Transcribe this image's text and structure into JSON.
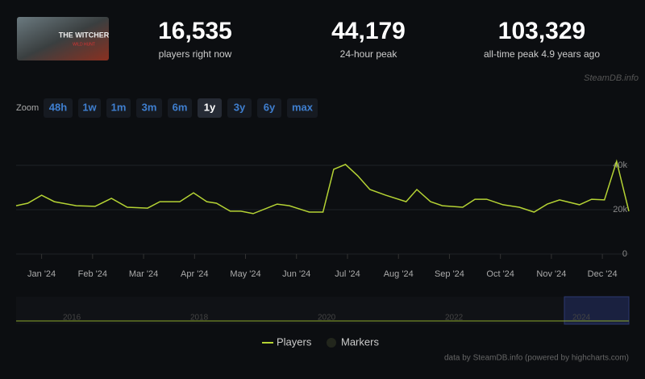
{
  "header": {
    "thumbnail_title": "THE WITCHER",
    "thumbnail_subtitle": "WILD HUNT",
    "stats": [
      {
        "value": "16,535",
        "label": "players right now"
      },
      {
        "value": "44,179",
        "label": "24-hour peak"
      },
      {
        "value": "103,329",
        "label": "all-time peak 4.9 years ago"
      }
    ],
    "watermark": "SteamDB.info"
  },
  "zoom": {
    "label": "Zoom",
    "buttons": [
      "48h",
      "1w",
      "1m",
      "3m",
      "6m",
      "1y",
      "3y",
      "6y",
      "max"
    ],
    "active": 5
  },
  "chart_data": {
    "type": "line",
    "x": [
      -0.5,
      -0.27,
      0,
      0.25,
      0.68,
      1.05,
      1.37,
      1.68,
      2.08,
      2.32,
      2.71,
      2.98,
      3.24,
      3.43,
      3.7,
      3.91,
      4.15,
      4.62,
      4.86,
      5.25,
      5.52,
      5.73,
      5.96,
      6.2,
      6.44,
      6.75,
      7.15,
      7.36,
      7.63,
      7.86,
      8.26,
      8.5,
      8.73,
      9.05,
      9.37,
      9.66,
      9.92,
      10.16,
      10.55,
      10.79,
      11.04,
      11.28,
      11.52
    ],
    "series": [
      {
        "name": "Players",
        "color": "#b5d334",
        "values": [
          21800,
          22900,
          26500,
          23600,
          21800,
          21500,
          25100,
          21100,
          20700,
          23600,
          23600,
          27600,
          23600,
          22900,
          19300,
          19300,
          18200,
          22500,
          21800,
          18900,
          18900,
          38200,
          40400,
          35300,
          29100,
          26500,
          23600,
          29100,
          23600,
          21800,
          21100,
          24700,
          24700,
          22200,
          21100,
          18900,
          22500,
          24400,
          22200,
          24700,
          24400,
          41800,
          19300
        ]
      }
    ],
    "markers_legend": "Markers",
    "xlim": [
      -0.5,
      11.52
    ],
    "xticks": [
      {
        "value": 0,
        "label": "Jan '24"
      },
      {
        "value": 1,
        "label": "Feb '24"
      },
      {
        "value": 2,
        "label": "Mar '24"
      },
      {
        "value": 3,
        "label": "Apr '24"
      },
      {
        "value": 4,
        "label": "May '24"
      },
      {
        "value": 5,
        "label": "Jun '24"
      },
      {
        "value": 6,
        "label": "Jul '24"
      },
      {
        "value": 7,
        "label": "Aug '24"
      },
      {
        "value": 8,
        "label": "Sep '24"
      },
      {
        "value": 9,
        "label": "Oct '24"
      },
      {
        "value": 10,
        "label": "Nov '24"
      },
      {
        "value": 11,
        "label": "Dec '24"
      }
    ],
    "ylim": [
      0,
      60000
    ],
    "yticks": [
      0,
      {
        "value": 20000,
        "label": "20k"
      },
      {
        "value": 40000,
        "label": "40k"
      }
    ],
    "grid": true
  },
  "navigator": {
    "labels": [
      "2016",
      "2018",
      "2020",
      "2022",
      "2024"
    ]
  },
  "footer": {
    "credit": "data by SteamDB.info (powered by highcharts.com)"
  }
}
